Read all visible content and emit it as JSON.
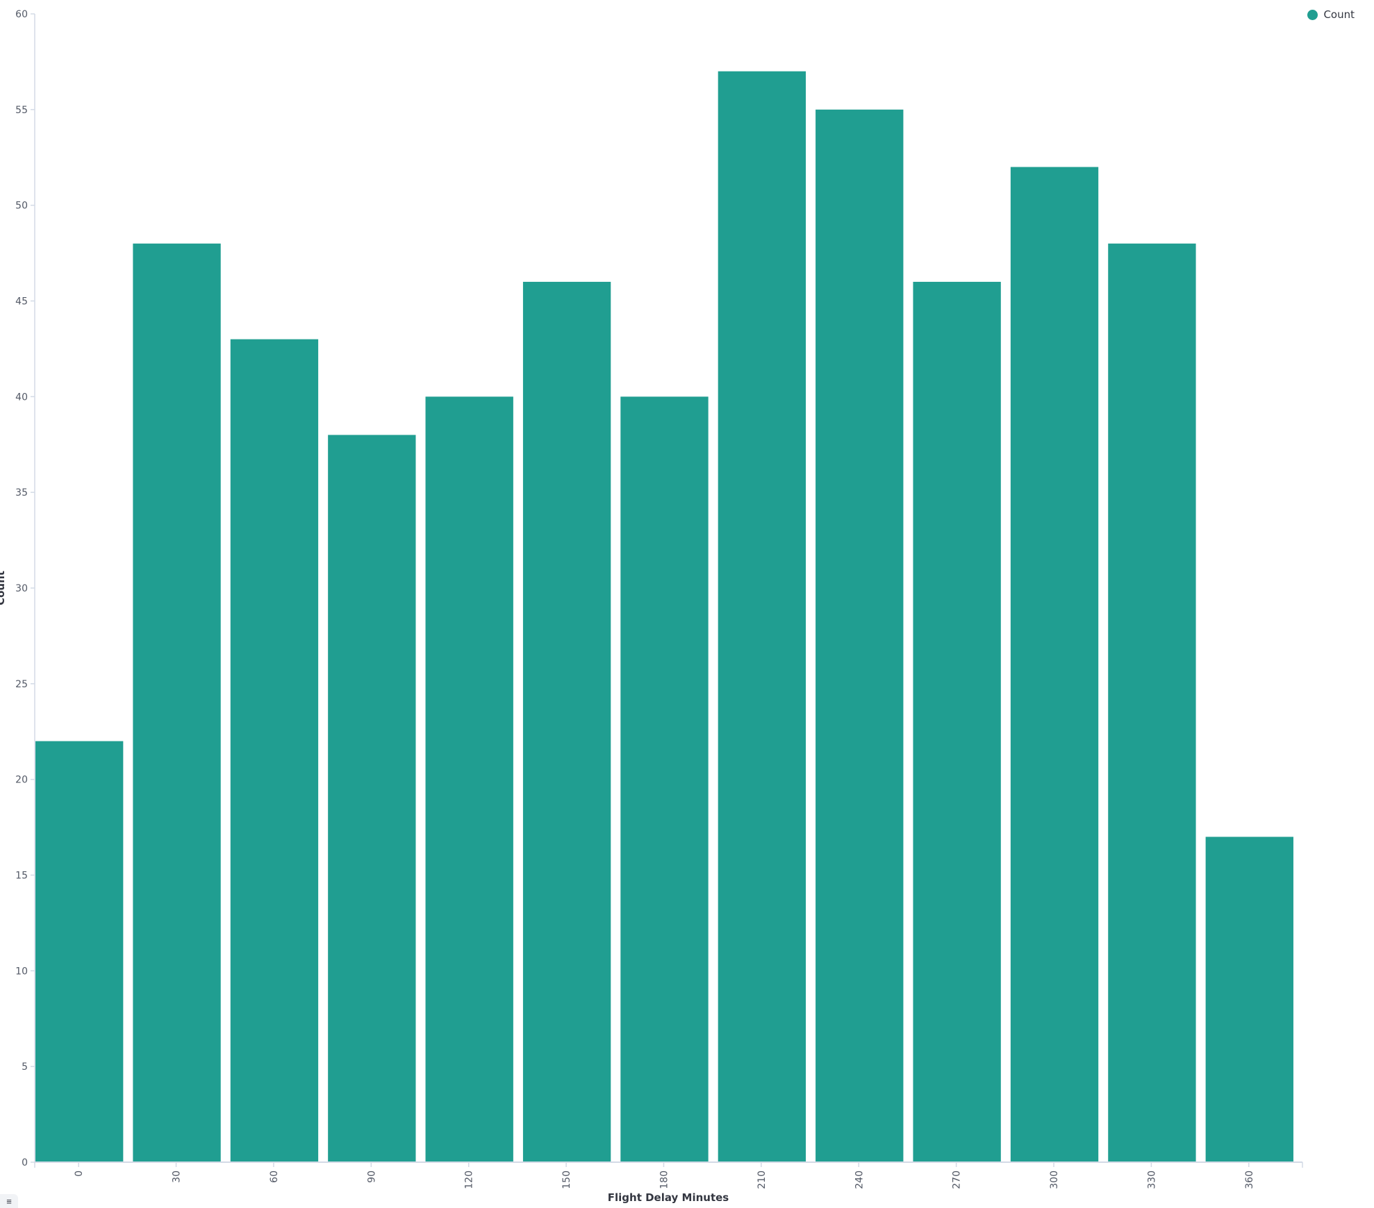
{
  "chart_data": {
    "type": "bar",
    "categories": [
      "0",
      "30",
      "60",
      "90",
      "120",
      "150",
      "180",
      "210",
      "240",
      "270",
      "300",
      "330",
      "360"
    ],
    "series": [
      {
        "name": "Count",
        "values": [
          22,
          48,
          43,
          38,
          40,
          46,
          40,
          57,
          55,
          46,
          52,
          48,
          17
        ]
      }
    ],
    "xlabel": "Flight Delay Minutes",
    "ylabel": "Count",
    "ylim": [
      0,
      60
    ],
    "yticks": [
      0,
      5,
      10,
      15,
      20,
      25,
      30,
      35,
      40,
      45,
      50,
      55,
      60
    ],
    "grid": false,
    "legend_position": "top-right",
    "bar_color": "#209E91"
  },
  "legend": {
    "label": "Count"
  },
  "legend_toggle_icon": "list-icon"
}
